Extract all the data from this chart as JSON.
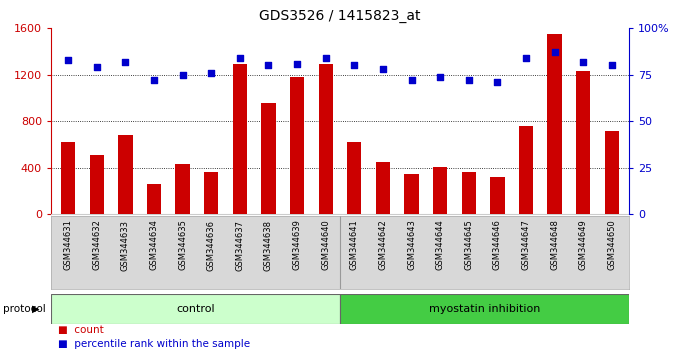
{
  "title": "GDS3526 / 1415823_at",
  "samples": [
    "GSM344631",
    "GSM344632",
    "GSM344633",
    "GSM344634",
    "GSM344635",
    "GSM344636",
    "GSM344637",
    "GSM344638",
    "GSM344639",
    "GSM344640",
    "GSM344641",
    "GSM344642",
    "GSM344643",
    "GSM344644",
    "GSM344645",
    "GSM344646",
    "GSM344647",
    "GSM344648",
    "GSM344649",
    "GSM344650"
  ],
  "counts": [
    620,
    510,
    680,
    260,
    430,
    360,
    1290,
    960,
    1180,
    1290,
    620,
    450,
    350,
    410,
    360,
    320,
    760,
    1550,
    1230,
    720
  ],
  "percentile": [
    83,
    79,
    82,
    72,
    75,
    76,
    84,
    80,
    81,
    84,
    80,
    78,
    72,
    74,
    72,
    71,
    84,
    87,
    82,
    80
  ],
  "control_count": 10,
  "groups": [
    "control",
    "myostatin inhibition"
  ],
  "bar_color": "#cc0000",
  "dot_color": "#0000cc",
  "left_ylim": [
    0,
    1600
  ],
  "right_ylim": [
    0,
    100
  ],
  "left_yticks": [
    0,
    400,
    800,
    1200,
    1600
  ],
  "right_yticks": [
    0,
    25,
    50,
    75,
    100
  ],
  "right_yticklabels": [
    "0",
    "25",
    "50",
    "75",
    "100%"
  ],
  "grid_values": [
    400,
    800,
    1200
  ],
  "bar_width": 0.5,
  "xtick_bg": "#d8d8d8",
  "plot_bg": "#ffffff",
  "legend_count_label": "count",
  "legend_pct_label": "percentile rank within the sample",
  "protocol_label": "protocol",
  "control_bg": "#ccffcc",
  "inhibition_bg": "#44cc44",
  "title_fontsize": 10,
  "tick_fontsize": 8,
  "label_fontsize": 7,
  "bar_label_fontsize": 6
}
